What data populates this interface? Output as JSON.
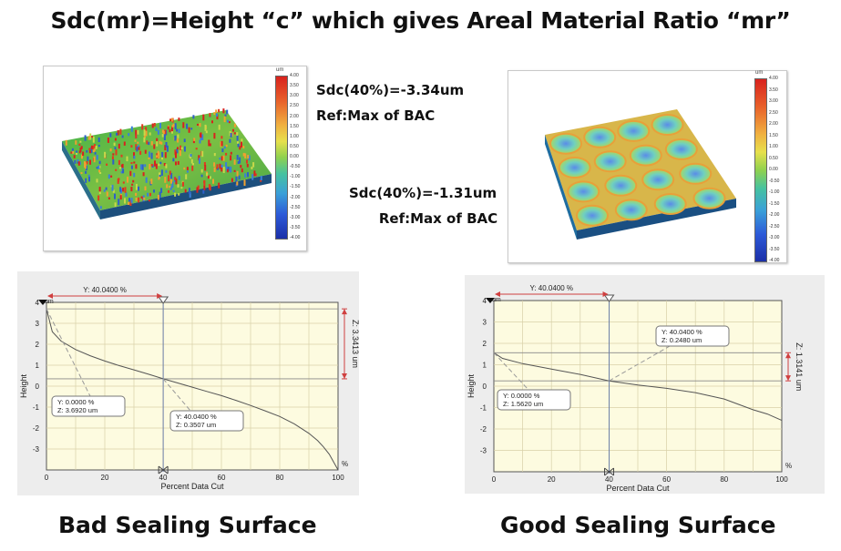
{
  "title": "Sdc(mr)=Height “c” which gives Areal Material Ratio “mr”",
  "bad": {
    "sdc_label": "Sdc(40%)=-3.34um",
    "ref_label": "Ref:Max of BAC",
    "caption": "Bad Sealing Surface",
    "scale": {
      "unit": "um",
      "ticks": [
        "4.00",
        "3.50",
        "3.00",
        "2.50",
        "2.00",
        "1.50",
        "1.00",
        "0.50",
        "0.00",
        "-0.50",
        "-1.00",
        "-1.50",
        "-2.00",
        "-2.50",
        "-3.00",
        "-3.50",
        "-4.00"
      ]
    }
  },
  "good": {
    "sdc_label": "Sdc(40%)=-1.31um",
    "ref_label": "Ref:Max of BAC",
    "caption": "Good Sealing Surface",
    "scale": {
      "unit": "um",
      "ticks": [
        "4.00",
        "3.50",
        "3.00",
        "2.50",
        "2.00",
        "1.50",
        "1.00",
        "0.50",
        "0.00",
        "-0.50",
        "-1.00",
        "-1.50",
        "-2.00",
        "-2.50",
        "-3.00",
        "-3.50",
        "-4.00"
      ]
    }
  },
  "chart_data": [
    {
      "type": "line",
      "title": "",
      "xlabel": "Percent Data Cut",
      "ylabel": "Height",
      "x_unit_label": "%",
      "y_unit_label": "um",
      "xlim": [
        0,
        100
      ],
      "ylim": [
        -4,
        4
      ],
      "x_ticks": [
        "0",
        "20",
        "40",
        "60",
        "80",
        "100"
      ],
      "y_ticks": [
        "4",
        "3",
        "2",
        "1",
        "0",
        "-1",
        "-2",
        "-3"
      ],
      "cursor_x_label": "Y: 40.0400 %",
      "z_range_label": "Z: 3.3413 um",
      "z_range": [
        0.35,
        3.69
      ],
      "callouts": [
        {
          "line1": "Y: 0.0000 %",
          "line2": "Z: 3.6920 um",
          "x": 0,
          "y": 3.692
        },
        {
          "line1": "Y: 40.0400 %",
          "line2": "Z: 0.3507 um",
          "x": 40.04,
          "y": 0.3507
        }
      ],
      "series": [
        {
          "x": [
            0,
            2,
            5,
            10,
            15,
            20,
            25,
            30,
            35,
            40.04,
            45,
            50,
            55,
            60,
            65,
            70,
            75,
            80,
            85,
            90,
            93,
            95,
            97,
            98,
            99,
            100
          ],
          "y": [
            3.692,
            2.6,
            2.15,
            1.75,
            1.45,
            1.2,
            0.98,
            0.78,
            0.57,
            0.3507,
            0.15,
            -0.05,
            -0.25,
            -0.45,
            -0.68,
            -0.92,
            -1.18,
            -1.45,
            -1.8,
            -2.25,
            -2.6,
            -2.9,
            -3.25,
            -3.5,
            -3.75,
            -4.0
          ]
        }
      ]
    },
    {
      "type": "line",
      "title": "",
      "xlabel": "Percent Data Cut",
      "ylabel": "Height",
      "x_unit_label": "%",
      "y_unit_label": "um",
      "xlim": [
        0,
        100
      ],
      "ylim": [
        -4,
        4
      ],
      "x_ticks": [
        "0",
        "20",
        "40",
        "60",
        "80",
        "100"
      ],
      "y_ticks": [
        "4",
        "3",
        "2",
        "1",
        "0",
        "-1",
        "-2",
        "-3"
      ],
      "cursor_x_label": "Y: 40.0400 %",
      "z_range_label": "Z: 1.3141 um",
      "z_range": [
        0.248,
        1.562
      ],
      "callouts": [
        {
          "line1": "Y: 0.0000 %",
          "line2": "Z: 1.5620 um",
          "x": 0,
          "y": 1.562
        },
        {
          "line1": "Y: 40.0400 %",
          "line2": "Z: 0.2480 um",
          "x": 40.04,
          "y": 0.248
        }
      ],
      "series": [
        {
          "x": [
            0,
            3,
            10,
            20,
            30,
            40.04,
            50,
            60,
            70,
            75,
            80,
            85,
            90,
            95,
            100
          ],
          "y": [
            1.562,
            1.3,
            1.05,
            0.8,
            0.55,
            0.248,
            0.05,
            -0.1,
            -0.3,
            -0.45,
            -0.6,
            -0.85,
            -1.1,
            -1.3,
            -1.6
          ]
        }
      ]
    }
  ]
}
